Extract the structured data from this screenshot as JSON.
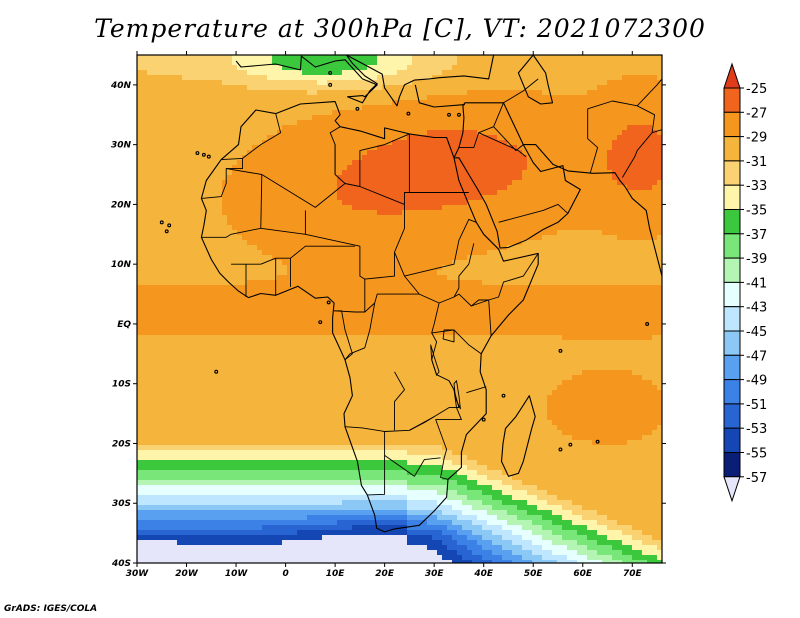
{
  "title": "Temperature at 300hPa [C], VT: 2021072300",
  "credit": "GrADS: IGES/COLA",
  "map": {
    "lon_range": [
      -30,
      76
    ],
    "lat_range": [
      -40,
      45
    ],
    "lat_ticks": [
      {
        "value": 40,
        "label": "40N"
      },
      {
        "value": 30,
        "label": "30N"
      },
      {
        "value": 20,
        "label": "20N"
      },
      {
        "value": 10,
        "label": "10N"
      },
      {
        "value": 0,
        "label": "EQ"
      },
      {
        "value": -10,
        "label": "10S"
      },
      {
        "value": -20,
        "label": "20S"
      },
      {
        "value": -30,
        "label": "30S"
      },
      {
        "value": -40,
        "label": "40S"
      }
    ],
    "lon_ticks": [
      {
        "value": -30,
        "label": "30W"
      },
      {
        "value": -20,
        "label": "20W"
      },
      {
        "value": -10,
        "label": "10W"
      },
      {
        "value": 0,
        "label": "0"
      },
      {
        "value": 10,
        "label": "10E"
      },
      {
        "value": 20,
        "label": "20E"
      },
      {
        "value": 30,
        "label": "30E"
      },
      {
        "value": 40,
        "label": "40E"
      },
      {
        "value": 50,
        "label": "50E"
      },
      {
        "value": 60,
        "label": "60E"
      },
      {
        "value": 70,
        "label": "70E"
      }
    ]
  },
  "colorbar": {
    "labels": [
      "-25",
      "-27",
      "-29",
      "-31",
      "-33",
      "-35",
      "-37",
      "-39",
      "-41",
      "-43",
      "-45",
      "-47",
      "-49",
      "-51",
      "-53",
      "-55",
      "-57"
    ],
    "colors": [
      "#e03c1c",
      "#f0641e",
      "#f5961e",
      "#f5b43c",
      "#fad272",
      "#fff5aa",
      "#3cc83c",
      "#78e678",
      "#b4f5b4",
      "#e6ffff",
      "#bee6ff",
      "#8cc8f5",
      "#5aa0f0",
      "#3c82e6",
      "#2864d2",
      "#1446b4",
      "#0a1e78",
      "#e6e6fa"
    ]
  }
}
